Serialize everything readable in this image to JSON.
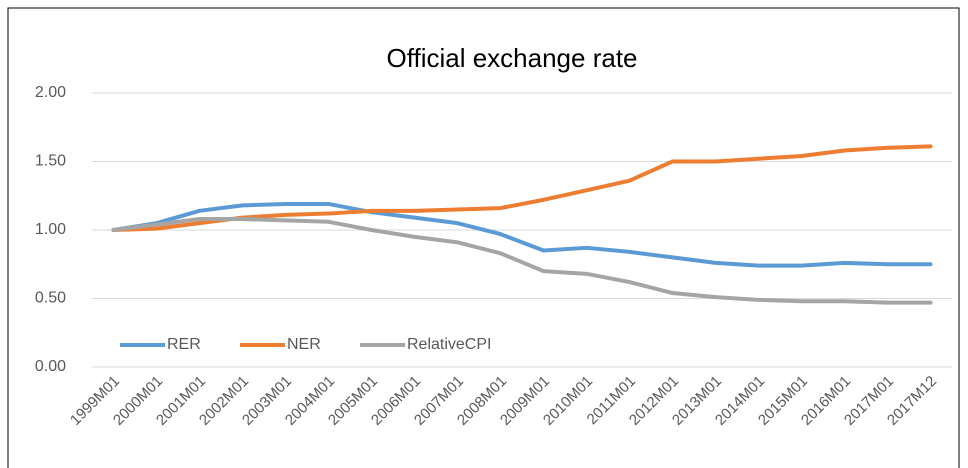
{
  "chart_data": {
    "type": "line",
    "title": "Official exchange rate",
    "categories": [
      "1999M01",
      "2000M01",
      "2001M01",
      "2002M01",
      "2003M01",
      "2004M01",
      "2005M01",
      "2006M01",
      "2007M01",
      "2008M01",
      "2009M01",
      "2010M01",
      "2011M01",
      "2012M01",
      "2013M01",
      "2014M01",
      "2015M01",
      "2016M01",
      "2017M01",
      "2017M12"
    ],
    "series": [
      {
        "name": "RER",
        "color": "#5b9bd5",
        "values": [
          1.0,
          1.05,
          1.14,
          1.18,
          1.19,
          1.19,
          1.13,
          1.09,
          1.05,
          0.97,
          0.85,
          0.87,
          0.84,
          0.8,
          0.76,
          0.74,
          0.74,
          0.76,
          0.75,
          0.75
        ]
      },
      {
        "name": "NER",
        "color": "#ed7d31",
        "values": [
          1.0,
          1.01,
          1.05,
          1.09,
          1.11,
          1.12,
          1.14,
          1.14,
          1.15,
          1.16,
          1.22,
          1.29,
          1.36,
          1.5,
          1.5,
          1.52,
          1.54,
          1.58,
          1.6,
          1.61
        ]
      },
      {
        "name": "RelativeCPI",
        "color": "#a5a5a5",
        "values": [
          1.0,
          1.04,
          1.08,
          1.08,
          1.07,
          1.06,
          1.0,
          0.95,
          0.91,
          0.83,
          0.7,
          0.68,
          0.62,
          0.54,
          0.51,
          0.49,
          0.48,
          0.48,
          0.47,
          0.47
        ]
      }
    ],
    "ylim": [
      0,
      2
    ],
    "yticks": [
      {
        "value": 0,
        "label": "0.00"
      },
      {
        "value": 0.5,
        "label": "0.50"
      },
      {
        "value": 1,
        "label": "1.00"
      },
      {
        "value": 1.5,
        "label": "1.50"
      },
      {
        "value": 2,
        "label": "2.00"
      }
    ],
    "grid": true,
    "legend": "lower left"
  }
}
